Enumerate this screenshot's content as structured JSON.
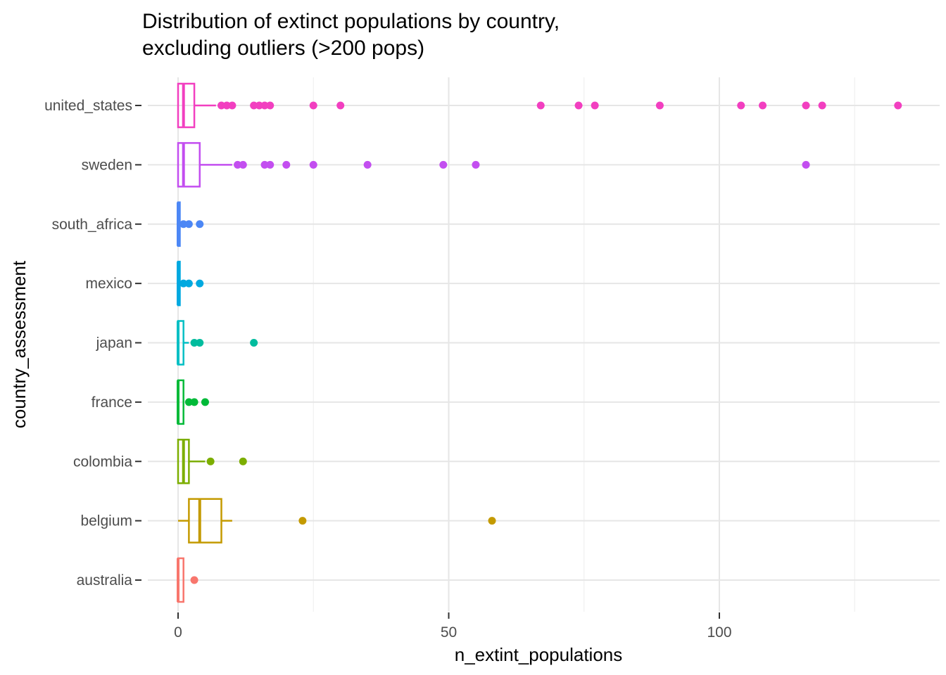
{
  "chart_data": {
    "type": "boxplot",
    "title": "Distribution of extinct populations by country,\nexcluding outliers (>200 pops)",
    "xlabel": "n_extint_populations",
    "ylabel": "country_assessment",
    "xlim": [
      -3,
      136
    ],
    "xticks": [
      0,
      50,
      100
    ],
    "grid": true,
    "orientation": "horizontal",
    "categories": [
      "australia",
      "belgium",
      "colombia",
      "france",
      "japan",
      "mexico",
      "south_africa",
      "sweden",
      "united_states"
    ],
    "series": [
      {
        "category": "australia",
        "color": "#F8766D",
        "min": 0,
        "q1": 0,
        "median": 0,
        "q3": 1,
        "max": 1,
        "outliers": [
          3
        ]
      },
      {
        "category": "belgium",
        "color": "#C49A00",
        "min": 0,
        "q1": 2,
        "median": 4,
        "q3": 8,
        "max": 10,
        "outliers": [
          23,
          58
        ]
      },
      {
        "category": "colombia",
        "color": "#7CAE00",
        "min": 0,
        "q1": 0,
        "median": 1,
        "q3": 2,
        "max": 5,
        "outliers": [
          6,
          12
        ]
      },
      {
        "category": "france",
        "color": "#00BA38",
        "min": 0,
        "q1": 0,
        "median": 0,
        "q3": 1,
        "max": 1,
        "outliers": [
          2,
          3,
          5
        ]
      },
      {
        "category": "japan",
        "color": "#00BFC4",
        "fill_color": "#00BC9E",
        "min": 0,
        "q1": 0,
        "median": 0,
        "q3": 1,
        "max": 2,
        "outliers": [
          3,
          4,
          14
        ]
      },
      {
        "category": "mexico",
        "color": "#00A9E0",
        "min": 0,
        "q1": 0,
        "median": 0,
        "q3": 0,
        "max": 0,
        "outliers": [
          1,
          2,
          4
        ]
      },
      {
        "category": "south_africa",
        "color": "#4C87F5",
        "min": 0,
        "q1": 0,
        "median": 0,
        "q3": 0,
        "max": 0,
        "outliers": [
          1,
          2,
          4
        ]
      },
      {
        "category": "sweden",
        "color": "#C34EF0",
        "min": 0,
        "q1": 0,
        "median": 1,
        "q3": 4,
        "max": 10,
        "outliers": [
          11,
          12,
          16,
          17,
          20,
          25,
          35,
          49,
          55,
          116
        ]
      },
      {
        "category": "united_states",
        "color": "#F23FC0",
        "min": 0,
        "q1": 0,
        "median": 1,
        "q3": 3,
        "max": 7,
        "outliers": [
          8,
          9,
          10,
          14,
          15,
          16,
          17,
          25,
          30,
          67,
          74,
          77,
          89,
          104,
          108,
          116,
          119,
          133
        ]
      }
    ]
  }
}
